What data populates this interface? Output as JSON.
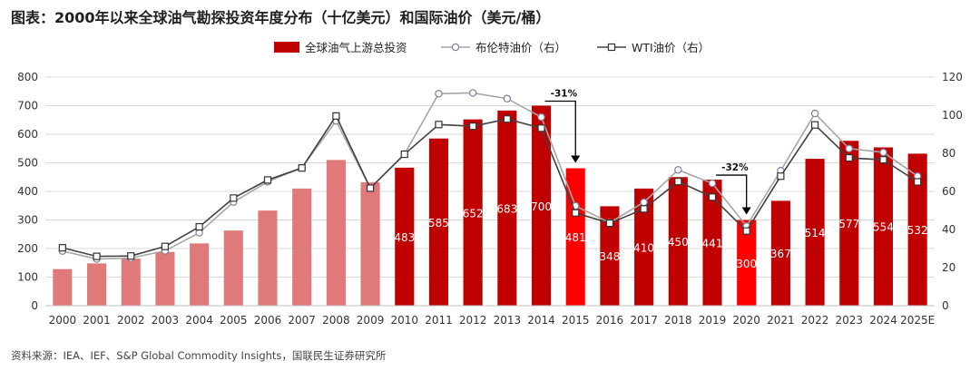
{
  "title": "图表：2000年以来全球油气勘探投资年度分布（十亿美元）和国际油价（美元/桶）",
  "source": "资料来源：IEA、IEF、S&P Global Commodity Insights，国联民生证券研究所",
  "colors": {
    "bar_light": "#E07A7A",
    "bar_dark": "#C00000",
    "bar_bright": "#FF0000",
    "brent_line": "#A6A6A6",
    "wti_line": "#404040",
    "grid": "#D9D9D9"
  },
  "chart_data": {
    "type": "bar+line",
    "categories": [
      "2000",
      "2001",
      "2002",
      "2003",
      "2004",
      "2005",
      "2006",
      "2007",
      "2008",
      "2009",
      "2010",
      "2011",
      "2012",
      "2013",
      "2014",
      "2015",
      "2016",
      "2017",
      "2018",
      "2019",
      "2020",
      "2021",
      "2022",
      "2023",
      "2024",
      "2025E"
    ],
    "series": [
      {
        "name": "全球油气上游总投资",
        "type": "bar",
        "axis": "left",
        "values": [
          128,
          148,
          165,
          188,
          218,
          263,
          333,
          410,
          510,
          432,
          483,
          585,
          652,
          683,
          700,
          481,
          348,
          410,
          450,
          441,
          300,
          367,
          514,
          577,
          554,
          532
        ],
        "shown_labels": [
          null,
          null,
          null,
          null,
          null,
          null,
          null,
          null,
          null,
          null,
          "483",
          "585",
          "652",
          "683",
          "700",
          "481",
          "348",
          "410",
          "450",
          "441",
          "300",
          "367",
          "514",
          "577",
          "554",
          "532"
        ],
        "styles": [
          "light",
          "light",
          "light",
          "light",
          "light",
          "light",
          "light",
          "light",
          "light",
          "light",
          "dark",
          "dark",
          "dark",
          "dark",
          "dark",
          "bright",
          "dark",
          "dark",
          "dark",
          "dark",
          "bright",
          "dark",
          "dark",
          "dark",
          "dark",
          "dark"
        ]
      },
      {
        "name": "布伦特油价（右）",
        "type": "line",
        "marker": "circle",
        "axis": "right",
        "values": [
          28.7,
          24.5,
          25.0,
          28.8,
          38.3,
          54.4,
          65.1,
          72.4,
          97.0,
          61.7,
          79.6,
          111.3,
          111.7,
          108.7,
          99.0,
          52.4,
          43.6,
          54.3,
          71.3,
          64.2,
          41.8,
          70.9,
          100.9,
          82.5,
          80.5,
          68.0
        ]
      },
      {
        "name": "WTI油价（右）",
        "type": "line",
        "marker": "square",
        "axis": "right",
        "values": [
          30.4,
          25.9,
          26.1,
          31.1,
          41.4,
          56.5,
          66.0,
          72.3,
          99.6,
          61.7,
          79.5,
          95.1,
          94.2,
          98.0,
          93.2,
          48.7,
          43.3,
          50.8,
          65.2,
          57.0,
          39.2,
          68.0,
          94.9,
          77.6,
          76.6,
          65.0
        ]
      }
    ],
    "y_left": {
      "min": 0,
      "max": 800,
      "ticks": [
        "0",
        "100",
        "200",
        "300",
        "400",
        "500",
        "600",
        "700",
        "800"
      ]
    },
    "y_right": {
      "min": 0,
      "max": 120,
      "ticks": [
        "0",
        "20",
        "40",
        "60",
        "80",
        "100",
        "120"
      ]
    },
    "legend_position": "top",
    "annotations": [
      {
        "text": "-31%",
        "from": "2014",
        "to": "2015"
      },
      {
        "text": "-32%",
        "from": "2019",
        "to": "2020"
      }
    ]
  }
}
